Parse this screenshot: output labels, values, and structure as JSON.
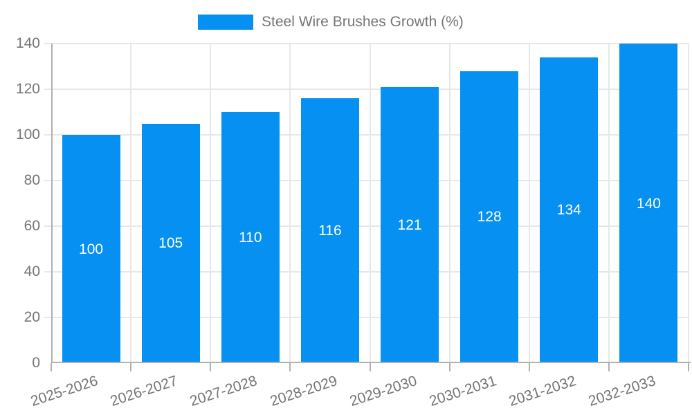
{
  "legend": {
    "label": "Steel Wire Brushes Growth (%)"
  },
  "colors": {
    "bar": "#0590f2",
    "grid": "#e7e7e7",
    "axis": "#b0b0b0",
    "tick_text": "#757575",
    "value_text": "#ffffff",
    "background": "#ffffff"
  },
  "chart_data": {
    "type": "bar",
    "title": "",
    "legend_entries": [
      "Steel Wire Brushes Growth (%)"
    ],
    "legend_position": "top",
    "categories": [
      "2025-2026",
      "2026-2027",
      "2027-2028",
      "2028-2029",
      "2029-2030",
      "2030-2031",
      "2031-2032",
      "2032-2033"
    ],
    "series": [
      {
        "name": "Steel Wire Brushes Growth (%)",
        "values": [
          100,
          105,
          110,
          116,
          121,
          128,
          134,
          140
        ]
      }
    ],
    "data_labels": [
      "100",
      "105",
      "110",
      "116",
      "121",
      "128",
      "134",
      "140"
    ],
    "xlabel": "",
    "ylabel": "",
    "ylim": [
      0,
      140
    ],
    "yticks": [
      0,
      20,
      40,
      60,
      80,
      100,
      120,
      140
    ],
    "grid": true,
    "x_label_rotation_deg": -18,
    "value_label_position": "middle"
  }
}
